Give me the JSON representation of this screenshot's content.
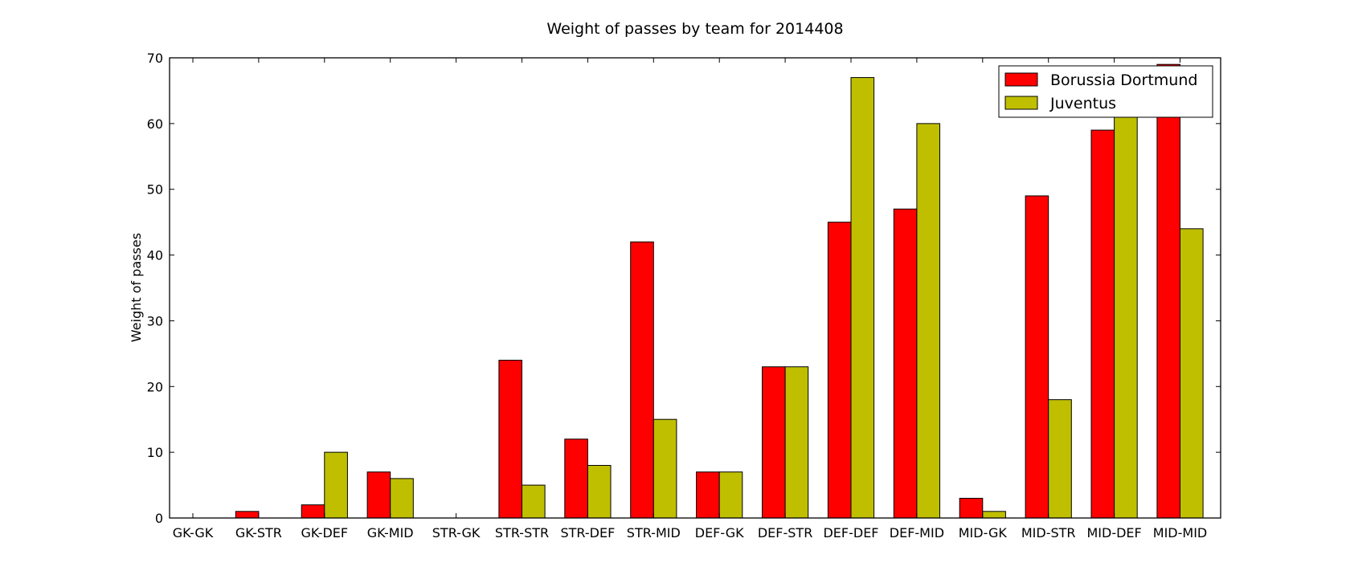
{
  "chart_data": {
    "type": "bar",
    "title": "Weight of passes by team for 2014408",
    "xlabel": "",
    "ylabel": "Weight of passes",
    "ylim": [
      0,
      70
    ],
    "yticks": [
      0,
      10,
      20,
      30,
      40,
      50,
      60,
      70
    ],
    "categories": [
      "GK-GK",
      "GK-STR",
      "GK-DEF",
      "GK-MID",
      "STR-GK",
      "STR-STR",
      "STR-DEF",
      "STR-MID",
      "DEF-GK",
      "DEF-STR",
      "DEF-DEF",
      "DEF-MID",
      "MID-GK",
      "MID-STR",
      "MID-DEF",
      "MID-MID"
    ],
    "series": [
      {
        "name": "Borussia Dortmund",
        "color": "#ff0000",
        "values": [
          0,
          1,
          2,
          7,
          0,
          24,
          12,
          42,
          7,
          23,
          45,
          47,
          3,
          49,
          59,
          69
        ]
      },
      {
        "name": "Juventus",
        "color": "#bfbf00",
        "values": [
          0,
          0,
          10,
          6,
          0,
          5,
          8,
          15,
          7,
          23,
          67,
          60,
          1,
          18,
          61,
          44
        ]
      }
    ],
    "grid": false,
    "legend": "top-right"
  }
}
